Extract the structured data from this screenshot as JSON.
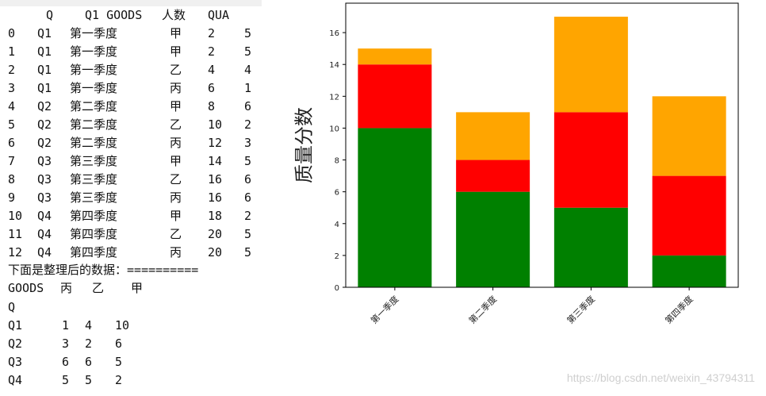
{
  "console": {
    "header": [
      "Q",
      "Q1 GOODS",
      "人数",
      "QUA"
    ],
    "rows": [
      [
        "0",
        "Q1",
        "第一季度",
        "甲",
        "2",
        "5"
      ],
      [
        "1",
        "Q1",
        "第一季度",
        "甲",
        "2",
        "5"
      ],
      [
        "2",
        "Q1",
        "第一季度",
        "乙",
        "4",
        "4"
      ],
      [
        "3",
        "Q1",
        "第一季度",
        "丙",
        "6",
        "1"
      ],
      [
        "4",
        "Q2",
        "第二季度",
        "甲",
        "8",
        "6"
      ],
      [
        "5",
        "Q2",
        "第二季度",
        "乙",
        "10",
        "2"
      ],
      [
        "6",
        "Q2",
        "第二季度",
        "丙",
        "12",
        "3"
      ],
      [
        "7",
        "Q3",
        "第三季度",
        "甲",
        "14",
        "5"
      ],
      [
        "8",
        "Q3",
        "第三季度",
        "乙",
        "16",
        "6"
      ],
      [
        "9",
        "Q3",
        "第三季度",
        "丙",
        "16",
        "6"
      ],
      [
        "10",
        "Q4",
        "第四季度",
        "甲",
        "18",
        "2"
      ],
      [
        "11",
        "Q4",
        "第四季度",
        "乙",
        "20",
        "5"
      ],
      [
        "12",
        "Q4",
        "第四季度",
        "丙",
        "20",
        "5"
      ]
    ],
    "separator": "下面是整理后的数据：==========",
    "pivot_header": [
      "GOODS",
      "丙",
      "乙",
      "甲"
    ],
    "pivot_index_name": "Q",
    "pivot_rows": [
      [
        "Q1",
        "1",
        "4",
        "10"
      ],
      [
        "Q2",
        "3",
        "2",
        "6"
      ],
      [
        "Q3",
        "6",
        "6",
        "5"
      ],
      [
        "Q4",
        "5",
        "5",
        "2"
      ]
    ]
  },
  "chart_data": {
    "type": "bar",
    "stacked": true,
    "categories": [
      "第一季度",
      "第二季度",
      "第三季度",
      "第四季度"
    ],
    "series": [
      {
        "values": [
          10,
          6,
          5,
          2
        ],
        "color": "#008000"
      },
      {
        "values": [
          4,
          2,
          6,
          5
        ],
        "color": "#ff0000"
      },
      {
        "values": [
          1,
          3,
          6,
          5
        ],
        "color": "#ffa500"
      }
    ],
    "ylabel": "质量分数",
    "ylim": [
      0,
      17.85
    ],
    "yticks": [
      0,
      2,
      4,
      6,
      8,
      10,
      12,
      14,
      16
    ],
    "xtick_rotation": 45
  },
  "watermark": "https://blog.csdn.net/weixin_43794311"
}
